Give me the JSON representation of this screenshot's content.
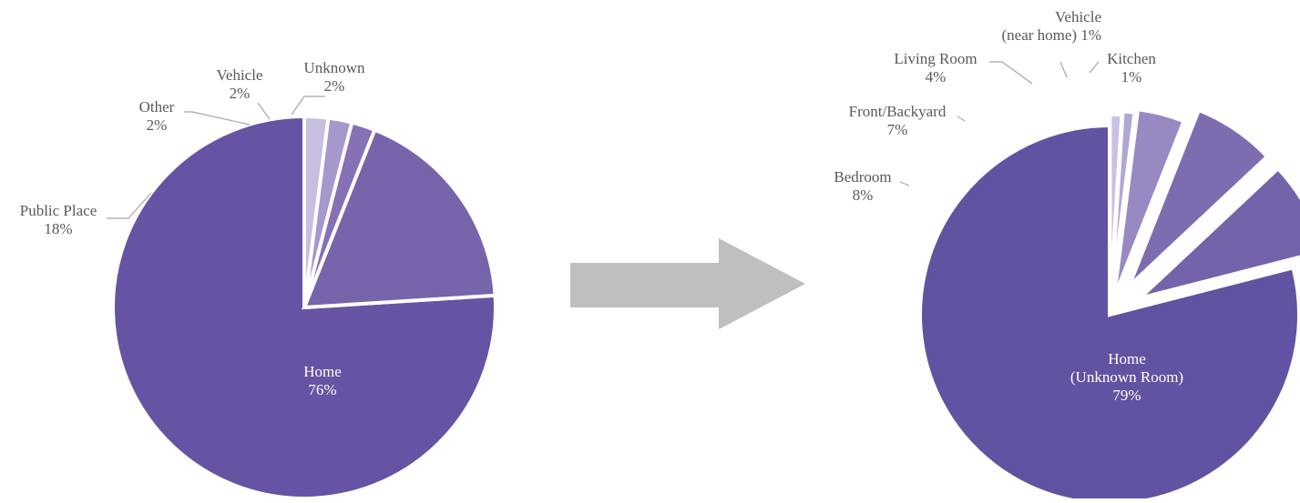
{
  "chart_data": [
    {
      "type": "pie",
      "title": "",
      "slices": [
        {
          "label": "Home",
          "value": 76,
          "value_label": "76%",
          "color": "#6753a3"
        },
        {
          "label": "Public Place",
          "value": 18,
          "value_label": "18%",
          "color": "#7764ab"
        },
        {
          "label": "Other",
          "value": 2,
          "value_label": "2%",
          "color": "#8670b6"
        },
        {
          "label": "Vehicle",
          "value": 2,
          "value_label": "2%",
          "color": "#a697cc"
        },
        {
          "label": "Unknown",
          "value": 2,
          "value_label": "2%",
          "color": "#c6bfe0"
        }
      ]
    },
    {
      "type": "pie",
      "title": "",
      "exploded": true,
      "slices": [
        {
          "label": "Home (Unknown Room)",
          "label_lines": [
            "Home",
            "(Unknown Room)"
          ],
          "value": 79,
          "value_label": "79%",
          "color": "#6252a2"
        },
        {
          "label": "Bedroom",
          "value": 8,
          "value_label": "8%",
          "color": "#7463ab"
        },
        {
          "label": "Front/Backyard",
          "value": 7,
          "value_label": "7%",
          "color": "#7d6db0"
        },
        {
          "label": "Living Room",
          "value": 4,
          "value_label": "4%",
          "color": "#9889c2"
        },
        {
          "label": "Vehicle (near home)",
          "label_lines": [
            "Vehicle",
            "(near home) 1%"
          ],
          "value": 1,
          "value_label": "1%",
          "color": "#b2a6d4"
        },
        {
          "label": "Kitchen",
          "value": 1,
          "value_label": "1%",
          "color": "#c9c1e2"
        }
      ]
    }
  ],
  "arrow": {
    "color": "#bfbfbf"
  }
}
